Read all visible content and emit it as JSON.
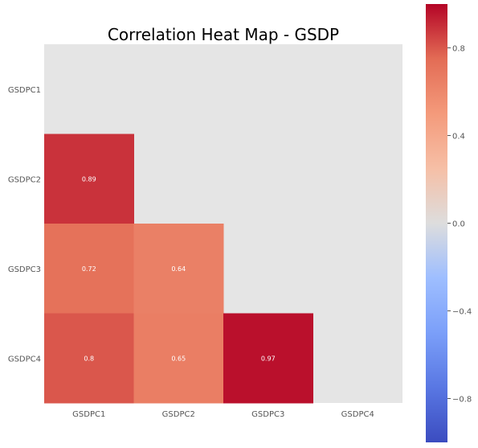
{
  "chart_data": {
    "type": "heatmap",
    "title": "Correlation Heat Map - GSDP",
    "xlabel": "",
    "ylabel": "",
    "x_labels": [
      "GSDPC1",
      "GSDPC2",
      "GSDPC3",
      "GSDPC4"
    ],
    "y_labels": [
      "GSDPC1",
      "GSDPC2",
      "GSDPC3",
      "GSDPC4"
    ],
    "mask": "upper triangle including diagonal",
    "cells": [
      {
        "row": "GSDPC2",
        "col": "GSDPC1",
        "value": 0.89,
        "label": "0.89"
      },
      {
        "row": "GSDPC3",
        "col": "GSDPC1",
        "value": 0.72,
        "label": "0.72"
      },
      {
        "row": "GSDPC3",
        "col": "GSDPC2",
        "value": 0.64,
        "label": "0.64"
      },
      {
        "row": "GSDPC4",
        "col": "GSDPC1",
        "value": 0.8,
        "label": "0.8"
      },
      {
        "row": "GSDPC4",
        "col": "GSDPC2",
        "value": 0.65,
        "label": "0.65"
      },
      {
        "row": "GSDPC4",
        "col": "GSDPC3",
        "value": 0.97,
        "label": "0.97"
      }
    ],
    "colormap": "coolwarm",
    "colorbar": {
      "range": [
        -1,
        1
      ],
      "ticks": [
        -0.8,
        -0.4,
        0.0,
        0.4,
        0.8
      ],
      "tick_labels": [
        "−0.8",
        "−0.4",
        "0.0",
        "0.4",
        "0.8"
      ]
    },
    "background_color": "#e5e5e5",
    "grid": false,
    "legend": "colorbar-right"
  }
}
